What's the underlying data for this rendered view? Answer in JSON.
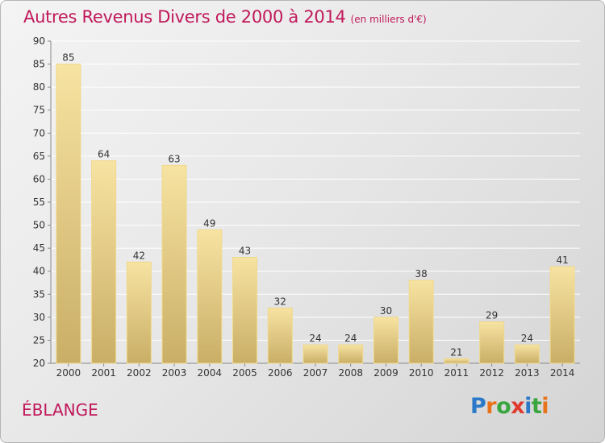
{
  "title": "Autres Revenus Divers de 2000 à 2014",
  "subtitle": "(en milliers d'€)",
  "place": "ÉBLANGE",
  "logo": {
    "text": "Proxiti",
    "letter_colors": [
      "#2b79c8",
      "#e8731b",
      "#3aa63f",
      "#e03a2e",
      "#2b79c8",
      "#3aa63f",
      "#e8731b"
    ]
  },
  "colors": {
    "title": "#c0185a",
    "bar_light": "#f7e3a2",
    "bar_dark": "#c9ae66",
    "grid": "#ffffff",
    "axis": "#888888",
    "text": "#333333"
  },
  "chart_data": {
    "type": "bar",
    "categories": [
      "2000",
      "2001",
      "2002",
      "2003",
      "2004",
      "2005",
      "2006",
      "2007",
      "2008",
      "2009",
      "2010",
      "2011",
      "2012",
      "2013",
      "2014"
    ],
    "values": [
      85,
      64,
      42,
      63,
      49,
      43,
      32,
      24,
      24,
      30,
      38,
      21,
      29,
      24,
      41
    ],
    "ylim": [
      20,
      90
    ],
    "yticks": [
      20,
      25,
      30,
      35,
      40,
      45,
      50,
      55,
      60,
      65,
      70,
      75,
      80,
      85,
      90
    ],
    "grid": true,
    "data_labels": true
  }
}
